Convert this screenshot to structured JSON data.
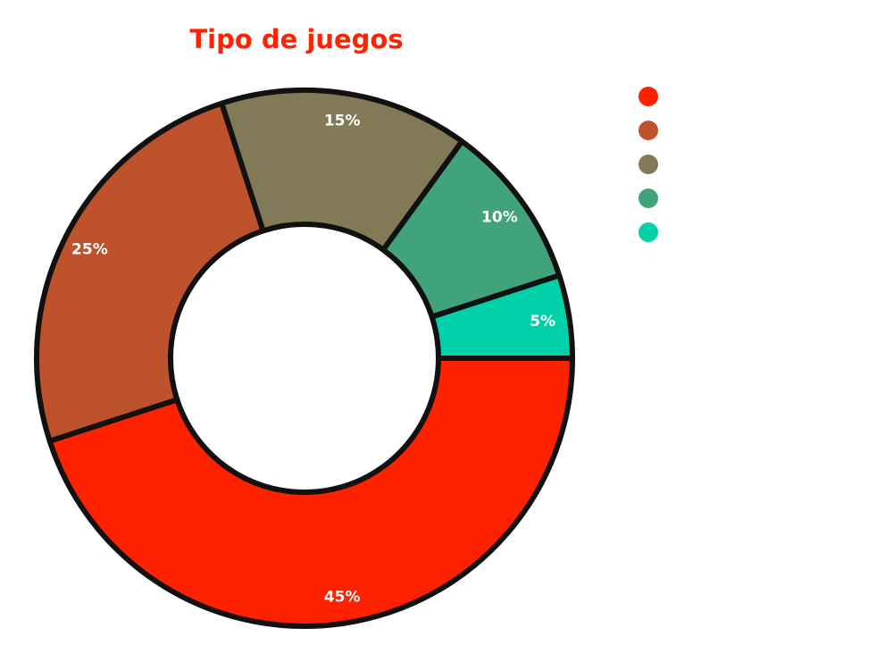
{
  "chart_data": {
    "type": "pie",
    "donut": true,
    "title": "Tipo de juegos",
    "title_color": "#ff2200",
    "slices": [
      {
        "name": "",
        "value": 45,
        "label": "45%",
        "color": "#ff2200"
      },
      {
        "name": "",
        "value": 25,
        "label": "25%",
        "color": "#bd522d"
      },
      {
        "name": "",
        "value": 15,
        "label": "15%",
        "color": "#827a56"
      },
      {
        "name": "",
        "value": 10,
        "label": "10%",
        "color": "#40a37b"
      },
      {
        "name": "",
        "value": 5,
        "label": "5%",
        "color": "#00d1a8"
      }
    ],
    "legend_position": "top-right",
    "outline_color": "#111111"
  }
}
